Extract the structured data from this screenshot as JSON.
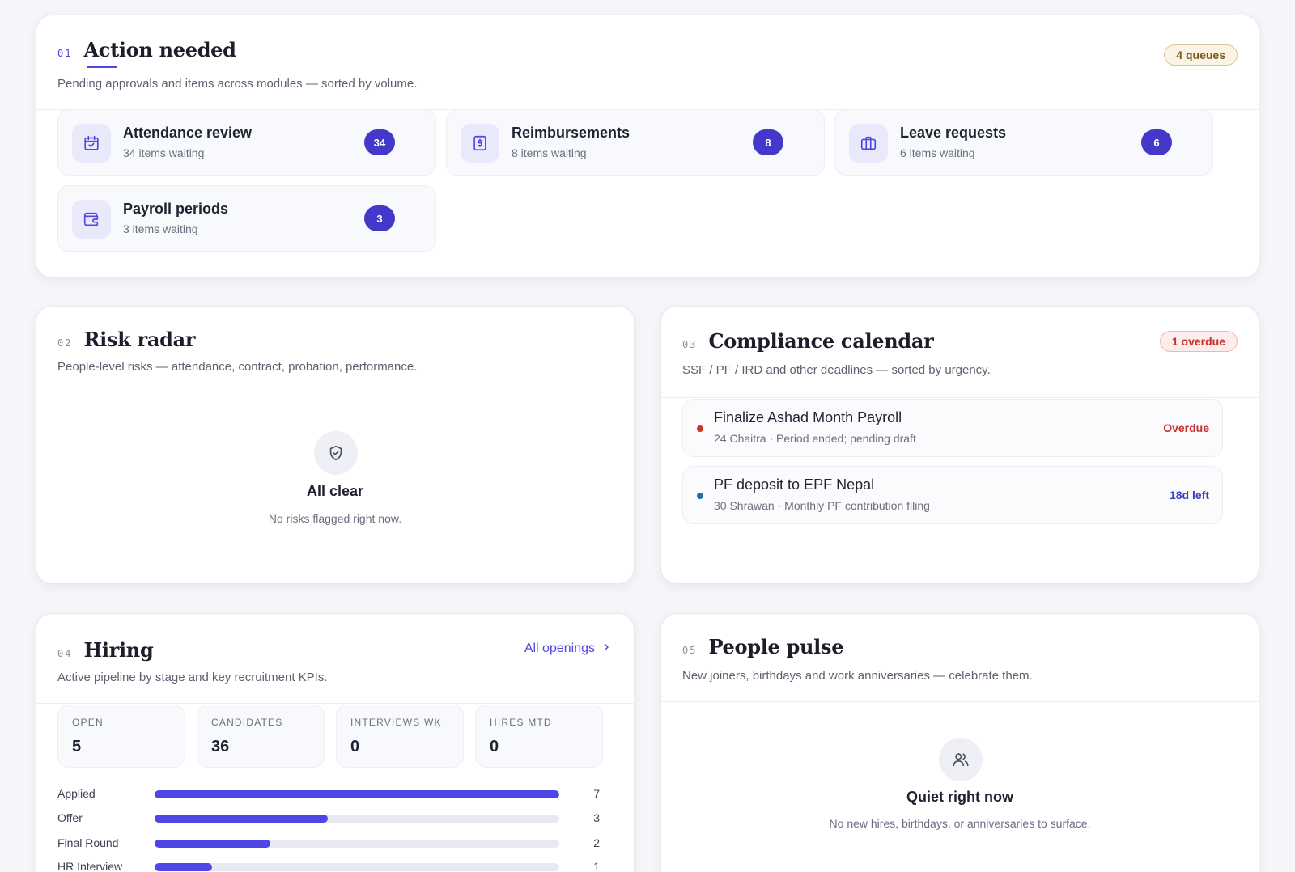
{
  "action_needed": {
    "num": "01",
    "title": "Action needed",
    "subtitle": "Pending approvals and items across modules — sorted by volume.",
    "badge": "4 queues",
    "tiles": [
      {
        "title": "Attendance review",
        "sub": "34 items waiting",
        "count": "34",
        "icon": "calendar-check-icon"
      },
      {
        "title": "Reimbursements",
        "sub": "8 items waiting",
        "count": "8",
        "icon": "receipt-icon"
      },
      {
        "title": "Leave requests",
        "sub": "6 items waiting",
        "count": "6",
        "icon": "briefcase-icon"
      },
      {
        "title": "Payroll periods",
        "sub": "3 items waiting",
        "count": "3",
        "icon": "wallet-icon"
      }
    ]
  },
  "risk_radar": {
    "num": "02",
    "title": "Risk radar",
    "subtitle": "People-level risks — attendance, contract, probation, performance.",
    "empty_title": "All clear",
    "empty_sub": "No risks flagged right now.",
    "icon": "shield-check-icon"
  },
  "compliance": {
    "num": "03",
    "title": "Compliance calendar",
    "subtitle": "SSF / PF / IRD and other deadlines — sorted by urgency.",
    "badge": "1 overdue",
    "items": [
      {
        "title": "Finalize Ashad Month Payroll",
        "sub": "24 Chaitra · Period ended; pending draft",
        "status": "Overdue",
        "status_color": "#c53030",
        "dot_color": "#c0392b"
      },
      {
        "title": "PF deposit to EPF Nepal",
        "sub": "30 Shrawan · Monthly PF contribution filing",
        "status": "18d left",
        "status_color": "#3b3fc4",
        "dot_color": "#1a6fa8"
      }
    ]
  },
  "hiring": {
    "num": "04",
    "title": "Hiring",
    "subtitle": "Active pipeline by stage and key recruitment KPIs.",
    "link": "All openings",
    "kpis": [
      {
        "label": "OPEN",
        "value": "5"
      },
      {
        "label": "CANDIDATES",
        "value": "36"
      },
      {
        "label": "INTERVIEWS WK",
        "value": "0"
      },
      {
        "label": "HIRES MTD",
        "value": "0"
      }
    ],
    "stages": [
      {
        "label": "Applied",
        "count": "7",
        "fraction": 1.0
      },
      {
        "label": "Offer",
        "count": "3",
        "fraction": 0.4286
      },
      {
        "label": "Final Round",
        "count": "2",
        "fraction": 0.2857
      },
      {
        "label": "HR Interview",
        "count": "1",
        "fraction": 0.1429
      }
    ]
  },
  "people_pulse": {
    "num": "05",
    "title": "People pulse",
    "subtitle": "New joiners, birthdays and work anniversaries — celebrate them.",
    "empty_title": "Quiet right now",
    "empty_sub": "No new hires, birthdays, or anniversaries to surface.",
    "icon": "users-icon"
  },
  "colors": {
    "accent": "#4f46e5",
    "badge_bg": "#4338ca",
    "overdue": "#c53030"
  }
}
